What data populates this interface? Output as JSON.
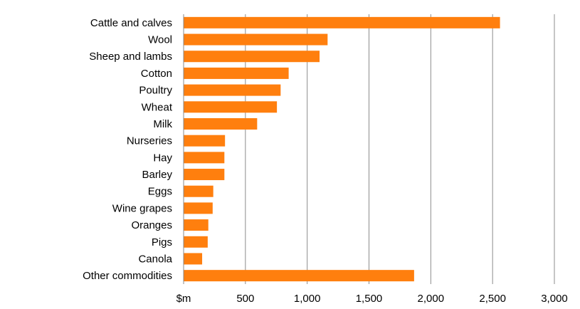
{
  "chart_data": {
    "type": "bar",
    "orientation": "horizontal",
    "categories": [
      "Cattle and calves",
      "Wool",
      "Sheep and lambs",
      "Cotton",
      "Poultry",
      "Wheat",
      "Milk",
      "Nurseries",
      "Hay",
      "Barley",
      "Eggs",
      "Wine grapes",
      "Oranges",
      "Pigs",
      "Canola",
      "Other commodities"
    ],
    "values": [
      2560,
      1165,
      1100,
      850,
      785,
      755,
      595,
      335,
      330,
      330,
      240,
      235,
      200,
      195,
      150,
      1865
    ],
    "xlim": [
      0,
      3000
    ],
    "ticks": [
      0,
      500,
      1000,
      1500,
      2000,
      2500,
      3000
    ],
    "tick_labels": [
      "$m",
      "500",
      "1,000",
      "1,500",
      "2,000",
      "2,500",
      "3,000"
    ],
    "grid": true,
    "legend": "none",
    "bar_color": "#ff7f0e"
  }
}
